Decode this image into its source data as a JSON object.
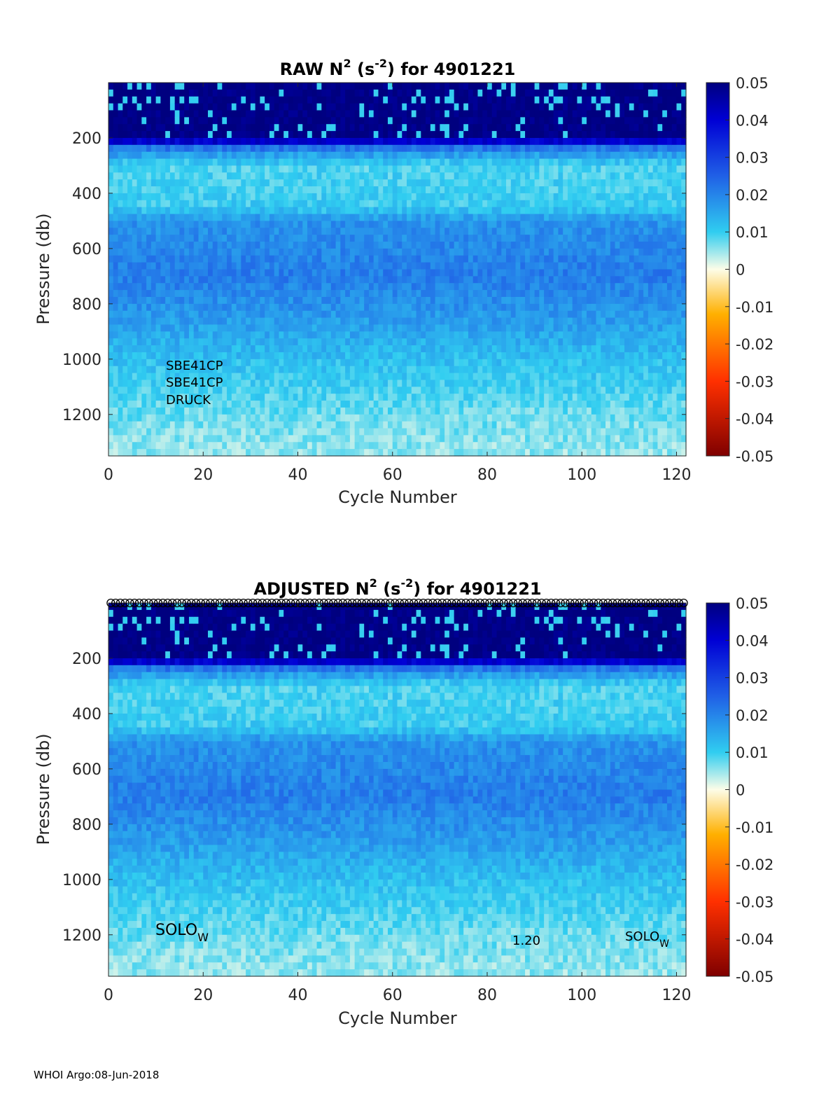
{
  "footer": "WHOI Argo:08-Jun-2018",
  "chart_data": [
    {
      "type": "heatmap",
      "title": {
        "main": "RAW N",
        "sup1": "2",
        "mid": " (s",
        "sup2": "-2",
        "end": ") for 4901221"
      },
      "xlabel": "Cycle Number",
      "ylabel": "Pressure (db)",
      "xlim": [
        0,
        122
      ],
      "ylim": [
        0,
        1350
      ],
      "xticks": [
        0,
        20,
        40,
        60,
        80,
        100,
        120
      ],
      "yticks": [
        200,
        400,
        600,
        800,
        1000,
        1200
      ],
      "colorbar": {
        "range": [
          -0.05,
          0.05
        ],
        "ticks": [
          "0.05",
          "0.04",
          "0.03",
          "0.02",
          "0.01",
          "0",
          "-0.01",
          "-0.02",
          "-0.03",
          "-0.04",
          "-0.05"
        ]
      },
      "annotations": [
        "SBE41CP",
        "SBE41CP",
        "DRUCK"
      ],
      "profile_markers": false,
      "z_by_depth": [
        {
          "p": 0,
          "n2": 0.05
        },
        {
          "p": 200,
          "n2": 0.05
        },
        {
          "p": 240,
          "n2": 0.02
        },
        {
          "p": 300,
          "n2": 0.009
        },
        {
          "p": 450,
          "n2": 0.01
        },
        {
          "p": 500,
          "n2": 0.018
        },
        {
          "p": 700,
          "n2": 0.021
        },
        {
          "p": 850,
          "n2": 0.017
        },
        {
          "p": 1000,
          "n2": 0.012
        },
        {
          "p": 1200,
          "n2": 0.007
        },
        {
          "p": 1350,
          "n2": 0.005
        }
      ]
    },
    {
      "type": "heatmap",
      "title": {
        "main": "ADJUSTED N",
        "sup1": "2",
        "mid": " (s",
        "sup2": "-2",
        "end": ") for 4901221"
      },
      "xlabel": "Cycle Number",
      "ylabel": "Pressure (db)",
      "xlim": [
        0,
        122
      ],
      "ylim": [
        0,
        1350
      ],
      "xticks": [
        0,
        20,
        40,
        60,
        80,
        100,
        120
      ],
      "yticks": [
        200,
        400,
        600,
        800,
        1000,
        1200
      ],
      "colorbar": {
        "range": [
          -0.05,
          0.05
        ],
        "ticks": [
          "0.05",
          "0.04",
          "0.03",
          "0.02",
          "0.01",
          "0",
          "-0.01",
          "-0.02",
          "-0.03",
          "-0.04",
          "-0.05"
        ]
      },
      "annotations": {
        "left_base": "SOLO",
        "left_sub": "W",
        "mid": "1.20",
        "right_base": "SOLO",
        "right_sub": "W"
      },
      "profile_markers": true,
      "z_by_depth": [
        {
          "p": 0,
          "n2": 0.05
        },
        {
          "p": 200,
          "n2": 0.05
        },
        {
          "p": 240,
          "n2": 0.02
        },
        {
          "p": 300,
          "n2": 0.009
        },
        {
          "p": 450,
          "n2": 0.01
        },
        {
          "p": 500,
          "n2": 0.018
        },
        {
          "p": 700,
          "n2": 0.021
        },
        {
          "p": 850,
          "n2": 0.017
        },
        {
          "p": 1000,
          "n2": 0.012
        },
        {
          "p": 1200,
          "n2": 0.007
        },
        {
          "p": 1350,
          "n2": 0.005
        }
      ]
    }
  ]
}
